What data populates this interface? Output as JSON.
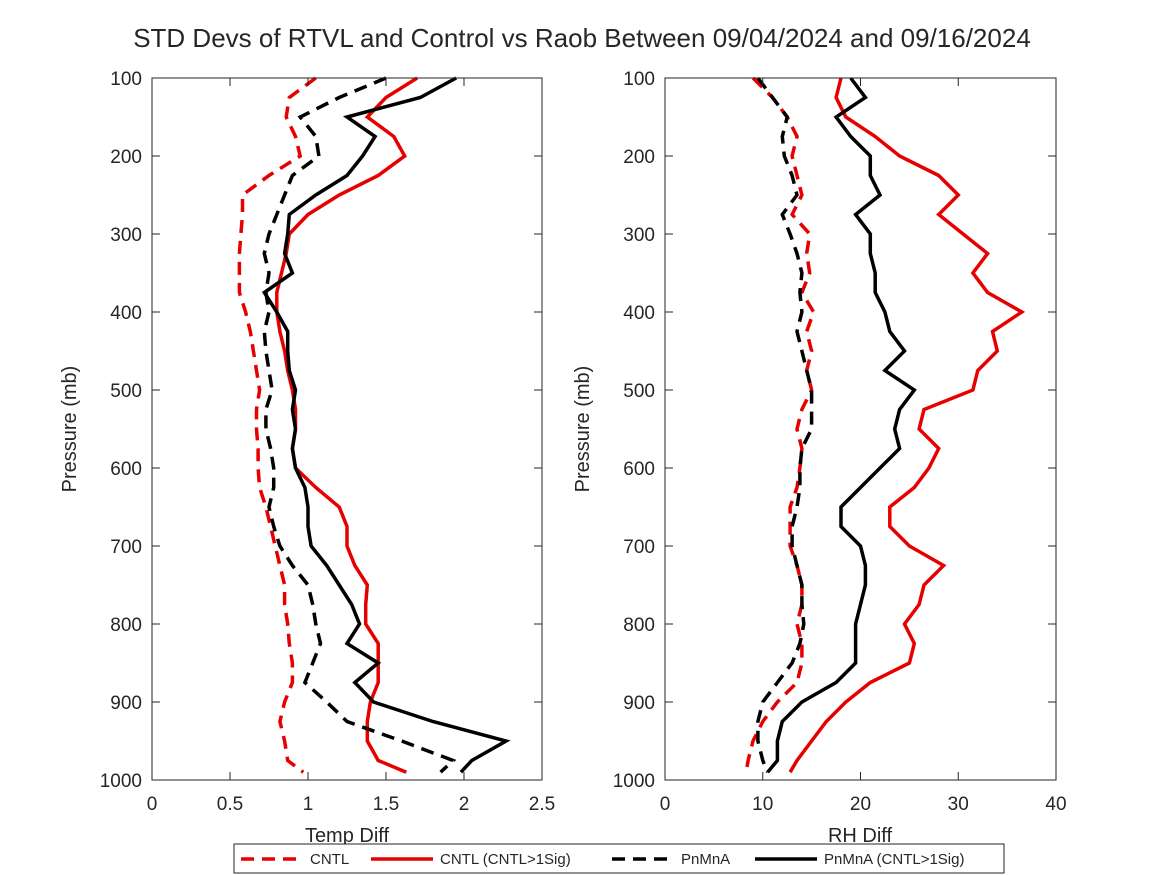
{
  "title": "STD Devs of RTVL and Control vs Raob Between 09/04/2024 and 09/16/2024",
  "legend": [
    {
      "label": "CNTL",
      "color": "#e60000",
      "dash": true
    },
    {
      "label": "CNTL (CNTL>1Sig)",
      "color": "#e60000",
      "dash": false
    },
    {
      "label": "PnMnA",
      "color": "#000000",
      "dash": true
    },
    {
      "label": "PnMnA (CNTL>1Sig)",
      "color": "#000000",
      "dash": false
    }
  ],
  "chart_data": [
    {
      "type": "line",
      "xlabel": "Temp Diff",
      "ylabel": "Pressure (mb)",
      "xlim": [
        0,
        2.5
      ],
      "ylim": [
        100,
        1000
      ],
      "y_reversed": true,
      "xticks": [
        "0",
        "0.5",
        "1",
        "1.5",
        "2",
        "2.5"
      ],
      "yticks": [
        "100",
        "200",
        "300",
        "400",
        "500",
        "600",
        "700",
        "800",
        "900",
        "1000"
      ],
      "y": [
        100,
        125,
        150,
        175,
        200,
        225,
        250,
        275,
        300,
        325,
        350,
        375,
        400,
        425,
        450,
        475,
        500,
        525,
        550,
        575,
        600,
        625,
        650,
        675,
        700,
        725,
        750,
        775,
        800,
        825,
        850,
        875,
        900,
        925,
        950,
        975,
        990
      ],
      "series": [
        {
          "name": "CNTL",
          "color": "#e60000",
          "dash": true,
          "values": [
            1.05,
            0.88,
            0.86,
            0.92,
            0.95,
            0.75,
            0.58,
            0.58,
            0.57,
            0.56,
            0.56,
            0.56,
            0.6,
            0.63,
            0.65,
            0.67,
            0.69,
            0.67,
            0.67,
            0.68,
            0.68,
            0.69,
            0.73,
            0.76,
            0.79,
            0.82,
            0.85,
            0.85,
            0.87,
            0.88,
            0.9,
            0.9,
            0.85,
            0.82,
            0.85,
            0.87,
            0.97
          ]
        },
        {
          "name": "CNTL (CNTL>1Sig)",
          "color": "#e60000",
          "dash": false,
          "values": [
            1.7,
            1.5,
            1.38,
            1.55,
            1.62,
            1.45,
            1.2,
            1.0,
            0.88,
            0.86,
            0.83,
            0.8,
            0.8,
            0.82,
            0.85,
            0.87,
            0.9,
            0.92,
            0.92,
            0.9,
            0.92,
            1.05,
            1.2,
            1.25,
            1.25,
            1.3,
            1.38,
            1.37,
            1.37,
            1.45,
            1.45,
            1.45,
            1.4,
            1.38,
            1.38,
            1.45,
            1.63
          ]
        },
        {
          "name": "PnMnA",
          "color": "#000000",
          "dash": true,
          "values": [
            1.5,
            1.2,
            0.95,
            1.05,
            1.07,
            0.9,
            0.85,
            0.8,
            0.75,
            0.72,
            0.75,
            0.73,
            0.75,
            0.72,
            0.73,
            0.75,
            0.77,
            0.73,
            0.73,
            0.76,
            0.78,
            0.78,
            0.75,
            0.78,
            0.82,
            0.9,
            1.0,
            1.03,
            1.05,
            1.08,
            1.03,
            0.98,
            1.12,
            1.25,
            1.6,
            1.93,
            1.85
          ]
        },
        {
          "name": "PnMnA (CNTL>1Sig)",
          "color": "#000000",
          "dash": false,
          "values": [
            1.95,
            1.72,
            1.25,
            1.43,
            1.35,
            1.25,
            1.05,
            0.88,
            0.87,
            0.85,
            0.9,
            0.72,
            0.8,
            0.87,
            0.87,
            0.88,
            0.92,
            0.9,
            0.92,
            0.9,
            0.92,
            0.98,
            1.0,
            1.0,
            1.02,
            1.12,
            1.2,
            1.28,
            1.33,
            1.25,
            1.45,
            1.3,
            1.42,
            1.8,
            2.27,
            2.05,
            1.98
          ]
        }
      ]
    },
    {
      "type": "line",
      "xlabel": "RH Diff",
      "ylabel": "Pressure (mb)",
      "xlim": [
        0,
        40
      ],
      "ylim": [
        100,
        1000
      ],
      "y_reversed": true,
      "xticks": [
        "0",
        "10",
        "20",
        "30",
        "40"
      ],
      "yticks": [
        "100",
        "200",
        "300",
        "400",
        "500",
        "600",
        "700",
        "800",
        "900",
        "1000"
      ],
      "y": [
        100,
        125,
        150,
        175,
        200,
        225,
        250,
        275,
        300,
        325,
        350,
        375,
        400,
        425,
        450,
        475,
        500,
        525,
        550,
        575,
        600,
        625,
        650,
        675,
        700,
        725,
        750,
        775,
        800,
        825,
        850,
        875,
        900,
        925,
        950,
        975,
        990
      ],
      "series": [
        {
          "name": "CNTL",
          "color": "#e60000",
          "dash": true,
          "values": [
            9.0,
            11.0,
            12.5,
            13.5,
            13.0,
            13.5,
            14.0,
            13.0,
            14.8,
            14.5,
            14.8,
            14.0,
            15.2,
            14.5,
            15.0,
            14.5,
            15.0,
            14.0,
            13.5,
            14.0,
            13.8,
            13.5,
            12.8,
            12.8,
            12.8,
            13.5,
            14.0,
            14.0,
            13.5,
            14.0,
            14.0,
            13.5,
            11.5,
            10.0,
            9.0,
            8.5,
            8.3
          ]
        },
        {
          "name": "CNTL (CNTL>1Sig)",
          "color": "#e60000",
          "dash": false,
          "values": [
            18.0,
            17.5,
            18.5,
            21.5,
            24.0,
            28.0,
            30.0,
            28.0,
            30.5,
            33.0,
            31.5,
            33.0,
            36.5,
            33.5,
            34.0,
            32.0,
            31.5,
            26.5,
            26.0,
            28.0,
            27.0,
            25.5,
            23.0,
            23.0,
            25.0,
            28.5,
            26.5,
            26.0,
            24.5,
            25.5,
            25.0,
            21.0,
            18.5,
            16.5,
            15.0,
            13.5,
            12.8
          ]
        },
        {
          "name": "PnMnA",
          "color": "#000000",
          "dash": true,
          "values": [
            9.5,
            11.0,
            12.5,
            12.0,
            12.2,
            13.0,
            13.5,
            12.0,
            12.8,
            13.5,
            14.0,
            13.8,
            14.0,
            13.5,
            14.0,
            14.5,
            15.0,
            15.0,
            15.0,
            14.0,
            13.8,
            13.8,
            13.5,
            13.0,
            13.0,
            13.5,
            14.0,
            14.0,
            14.2,
            13.8,
            13.0,
            11.5,
            10.0,
            9.5,
            9.5,
            10.0,
            10.5
          ]
        },
        {
          "name": "PnMnA (CNTL>1Sig)",
          "color": "#000000",
          "dash": false,
          "values": [
            19.0,
            20.5,
            17.5,
            19.0,
            21.0,
            21.0,
            22.0,
            19.5,
            21.0,
            21.0,
            21.5,
            21.5,
            22.5,
            23.0,
            24.5,
            22.5,
            25.5,
            24.0,
            23.5,
            24.0,
            22.0,
            20.0,
            18.0,
            18.0,
            20.0,
            20.5,
            20.5,
            20.0,
            19.5,
            19.5,
            19.5,
            17.5,
            14.0,
            12.0,
            11.5,
            11.5,
            10.5
          ]
        }
      ]
    }
  ]
}
